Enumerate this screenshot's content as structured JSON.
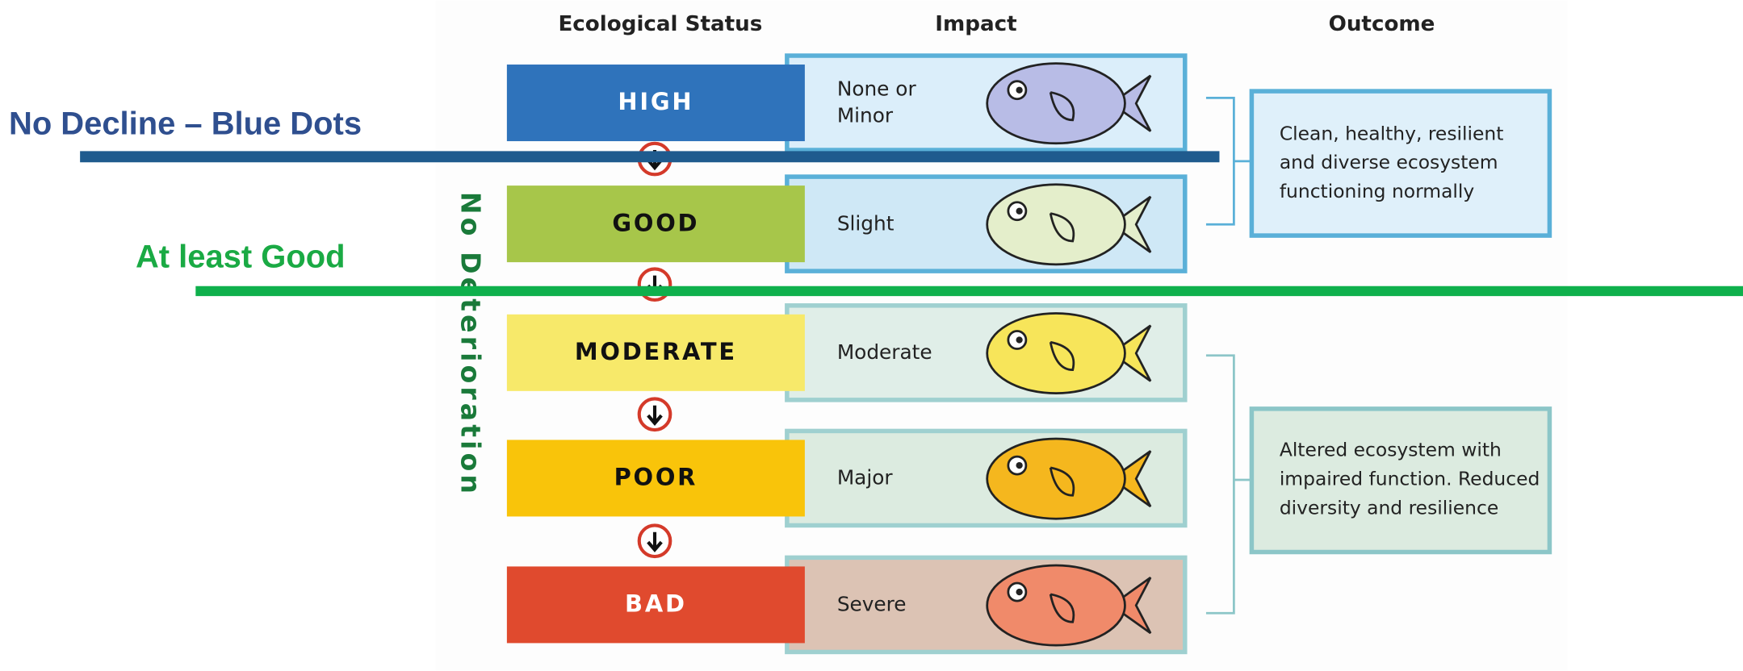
{
  "headers": [
    "Ecological Status",
    "Impact",
    "Outcome"
  ],
  "rows": [
    {
      "status": "HIGH",
      "impact": [
        "None or",
        "Minor"
      ]
    },
    {
      "status": "GOOD",
      "impact": [
        "Slight"
      ]
    },
    {
      "status": "MODERATE",
      "impact": [
        "Moderate"
      ]
    },
    {
      "status": "POOR",
      "impact": [
        "Major"
      ]
    },
    {
      "status": "BAD",
      "impact": [
        "Severe"
      ]
    }
  ],
  "outcomes": [
    [
      "Clean, healthy, resilient",
      "and diverse ecosystem",
      "functioning normally"
    ],
    [
      "Altered ecosystem with",
      "impaired function. Reduced",
      "diversity and resilience"
    ]
  ],
  "side_label": "No Deterioration",
  "annotations": [
    "No Decline – Blue Dots",
    "At least Good"
  ]
}
